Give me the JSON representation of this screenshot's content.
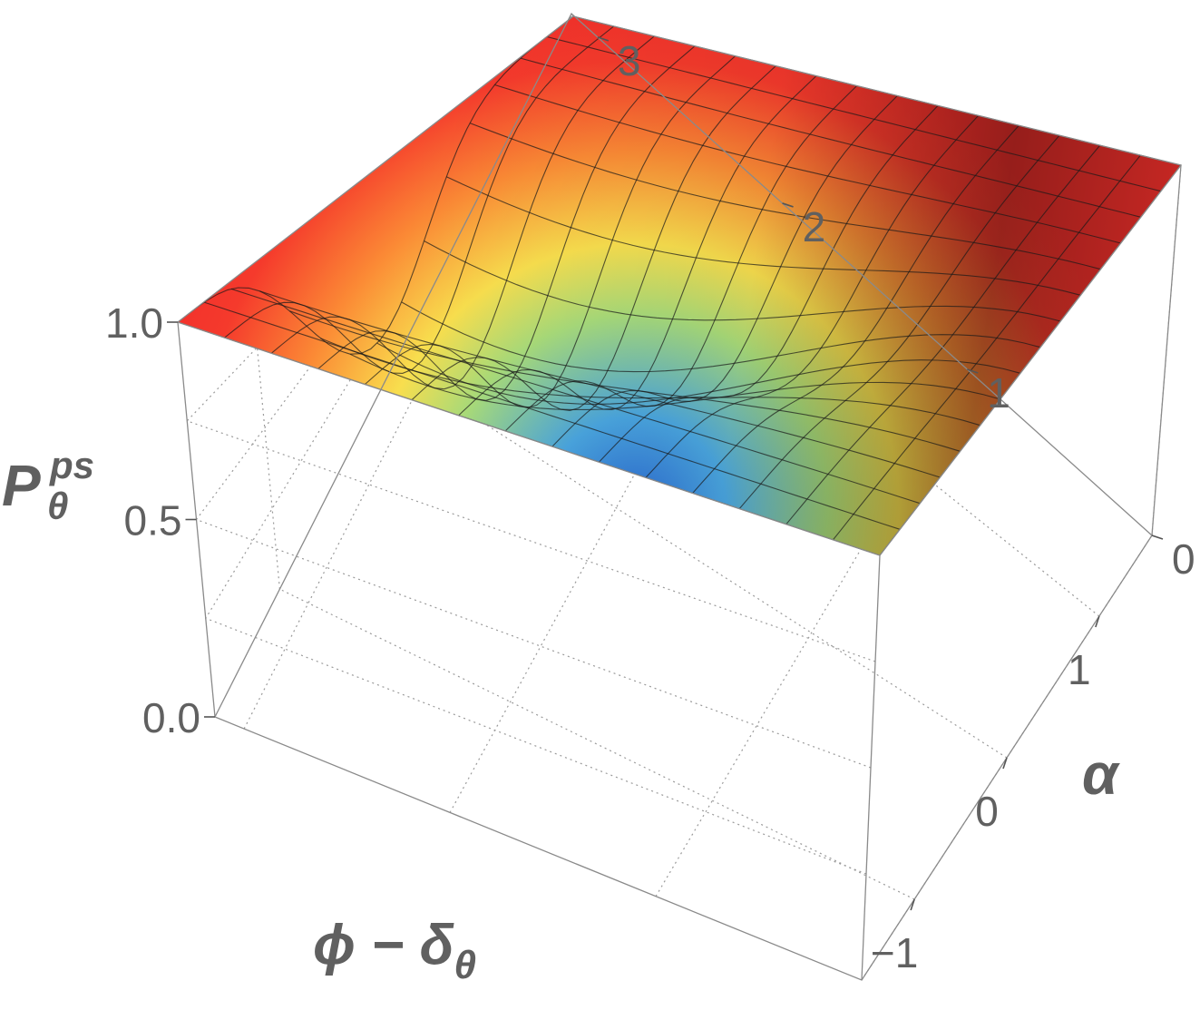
{
  "chart_data": {
    "type": "surface3d",
    "title": "",
    "xlabel_parts": {
      "main": "ϕ − δ",
      "sub": "θ"
    },
    "ylabel": "α",
    "zlabel_parts": {
      "main": "P",
      "sub": "θ",
      "sup": "ps"
    },
    "xlim": [
      -1.5708,
      1.5708
    ],
    "ylim": [
      0,
      3.1416
    ],
    "zlim": [
      0,
      1
    ],
    "x_ticks": [
      -1,
      0,
      1
    ],
    "x_tick_labels": [
      "−1",
      "0",
      "1"
    ],
    "y_ticks": [
      0,
      1,
      2,
      3
    ],
    "y_tick_labels": [
      "0",
      "1",
      "2",
      "3"
    ],
    "z_ticks": [
      0,
      0.5,
      1
    ],
    "z_tick_labels": [
      "0.0",
      "0.5",
      "1.0"
    ],
    "grid": true,
    "colormap": "rainbow",
    "mesh_lines": 15,
    "surface_samples": [
      {
        "alpha": 0.0,
        "x": 0.0,
        "z": 1.0
      },
      {
        "alpha": 1.0,
        "x": 0.0,
        "z": 0.93
      },
      {
        "alpha": 2.0,
        "x": 0.0,
        "z": 0.55
      },
      {
        "alpha": 2.5,
        "x": 0.0,
        "z": 0.38
      },
      {
        "alpha": 3.0,
        "x": 0.0,
        "z": 0.21
      },
      {
        "alpha": 3.1416,
        "x": 0.0,
        "z": 0.2
      },
      {
        "alpha": 3.1416,
        "x": -0.6,
        "z": 0.59
      },
      {
        "alpha": 3.1416,
        "x": 0.6,
        "z": 0.59
      },
      {
        "alpha": 3.1416,
        "x": -1.5708,
        "z": 1.0
      },
      {
        "alpha": 3.1416,
        "x": 1.5708,
        "z": 1.0
      }
    ]
  }
}
